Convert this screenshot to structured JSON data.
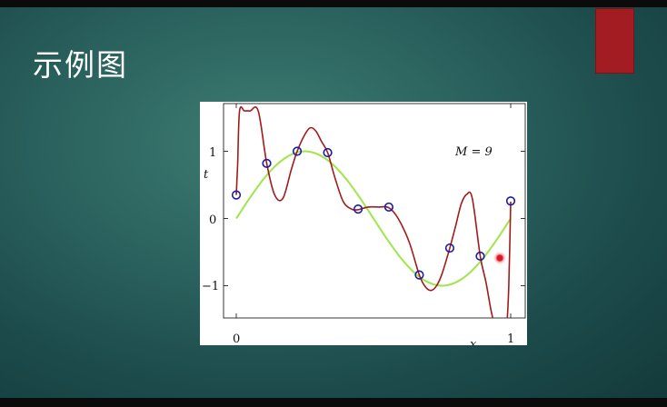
{
  "slide": {
    "title": "示例图"
  },
  "colors": {
    "accent_block": "#a31c22",
    "polynomial_fit": "#a11b1b",
    "true_curve": "#9ee64a",
    "data_points": "#1a1aa8"
  },
  "chart_data": {
    "type": "line",
    "annotation": "M = 9",
    "xlabel": "x",
    "ylabel": "t",
    "xticks": [
      "0",
      "1"
    ],
    "yticks": [
      "1",
      "0",
      "−1"
    ],
    "xlim": [
      -0.05,
      1.05
    ],
    "ylim": [
      -1.6,
      1.6
    ],
    "grid": false,
    "series": [
      {
        "role": "true-curve",
        "x": [
          0,
          0.05,
          0.1,
          0.15,
          0.2,
          0.25,
          0.3,
          0.35,
          0.4,
          0.45,
          0.5,
          0.55,
          0.6,
          0.65,
          0.7,
          0.75,
          0.8,
          0.85,
          0.9,
          0.95,
          1.0
        ],
        "y": [
          0,
          0.31,
          0.59,
          0.81,
          0.95,
          1.0,
          0.95,
          0.81,
          0.59,
          0.31,
          0,
          -0.31,
          -0.59,
          -0.81,
          -0.95,
          -1.0,
          -0.95,
          -0.81,
          -0.59,
          -0.31,
          0
        ]
      },
      {
        "role": "polynomial-fit",
        "x": [
          0.0,
          0.005,
          0.012,
          0.03,
          0.05,
          0.08,
          0.111,
          0.14,
          0.17,
          0.2,
          0.222,
          0.25,
          0.27,
          0.29,
          0.31,
          0.333,
          0.36,
          0.39,
          0.42,
          0.444,
          0.48,
          0.52,
          0.556,
          0.59,
          0.63,
          0.667,
          0.69,
          0.71,
          0.73,
          0.75,
          0.778,
          0.8,
          0.82,
          0.84,
          0.86,
          0.889,
          0.91,
          0.93,
          0.945,
          0.96,
          0.975,
          0.985,
          0.993,
          1.0
        ],
        "y": [
          0.35,
          0.8,
          1.6,
          1.6,
          1.6,
          1.6,
          0.82,
          0.35,
          0.3,
          0.72,
          1.0,
          1.25,
          1.35,
          1.3,
          1.15,
          0.98,
          0.6,
          0.25,
          0.14,
          0.13,
          0.17,
          0.17,
          0.16,
          0.0,
          -0.35,
          -0.84,
          -1.02,
          -1.07,
          -1.0,
          -0.82,
          -0.44,
          -0.1,
          0.22,
          0.36,
          0.3,
          -0.56,
          -0.95,
          -1.4,
          -1.6,
          -1.6,
          -1.6,
          -1.6,
          -1.0,
          0.25
        ]
      }
    ],
    "points": {
      "x": [
        0.0,
        0.111,
        0.222,
        0.333,
        0.444,
        0.556,
        0.667,
        0.778,
        0.889,
        1.0
      ],
      "y": [
        0.35,
        0.82,
        1.0,
        0.98,
        0.14,
        0.17,
        -0.84,
        -0.44,
        -0.56,
        0.26
      ]
    }
  }
}
